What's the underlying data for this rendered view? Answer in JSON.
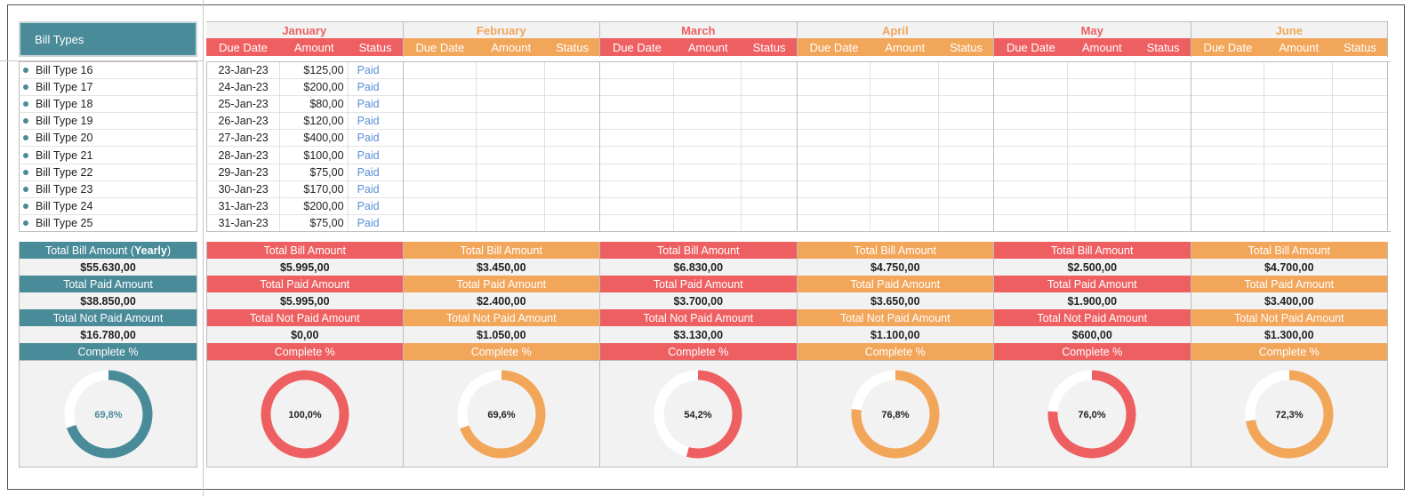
{
  "left": {
    "header": "Bill Types",
    "bill_types": [
      "Bill Type 16",
      "Bill Type 17",
      "Bill Type 18",
      "Bill Type 19",
      "Bill Type 20",
      "Bill Type 21",
      "Bill Type 22",
      "Bill Type 23",
      "Bill Type 24",
      "Bill Type 25"
    ],
    "summary": {
      "total_bill_label_main": "Total Bill Amount (",
      "total_bill_label_bold": "Yearly",
      "total_bill_label_end": ")",
      "total_bill_value": "$55.630,00",
      "total_paid_label": "Total Paid Amount",
      "total_paid_value": "$38.850,00",
      "total_not_paid_label": "Total Not Paid Amount",
      "total_not_paid_value": "$16.780,00",
      "complete_label": "Complete %",
      "complete_pct": 69.8,
      "complete_text": "69,8%",
      "color": "#4a8b99"
    }
  },
  "column_headers": {
    "due": "Due Date",
    "amount": "Amount",
    "status": "Status"
  },
  "months": [
    {
      "name": "January",
      "theme": "red",
      "color": "#ee5f61",
      "rows": [
        {
          "due": "23-Jan-23",
          "amount": "$125,00",
          "status": "Paid"
        },
        {
          "due": "24-Jan-23",
          "amount": "$200,00",
          "status": "Paid"
        },
        {
          "due": "25-Jan-23",
          "amount": "$80,00",
          "status": "Paid"
        },
        {
          "due": "26-Jan-23",
          "amount": "$120,00",
          "status": "Paid"
        },
        {
          "due": "27-Jan-23",
          "amount": "$400,00",
          "status": "Paid"
        },
        {
          "due": "28-Jan-23",
          "amount": "$100,00",
          "status": "Paid"
        },
        {
          "due": "29-Jan-23",
          "amount": "$75,00",
          "status": "Paid"
        },
        {
          "due": "30-Jan-23",
          "amount": "$170,00",
          "status": "Paid"
        },
        {
          "due": "31-Jan-23",
          "amount": "$200,00",
          "status": "Paid"
        },
        {
          "due": "31-Jan-23",
          "amount": "$75,00",
          "status": "Paid"
        }
      ],
      "total_bill": "$5.995,00",
      "total_paid": "$5.995,00",
      "total_not_paid": "$0,00",
      "complete_pct": 100.0,
      "complete_text": "100,0%"
    },
    {
      "name": "February",
      "theme": "orange",
      "color": "#f2a65a",
      "rows": [],
      "total_bill": "$3.450,00",
      "total_paid": "$2.400,00",
      "total_not_paid": "$1.050,00",
      "complete_pct": 69.6,
      "complete_text": "69,6%"
    },
    {
      "name": "March",
      "theme": "red",
      "color": "#ee5f61",
      "rows": [],
      "total_bill": "$6.830,00",
      "total_paid": "$3.700,00",
      "total_not_paid": "$3.130,00",
      "complete_pct": 54.2,
      "complete_text": "54,2%"
    },
    {
      "name": "April",
      "theme": "orange",
      "color": "#f2a65a",
      "rows": [],
      "total_bill": "$4.750,00",
      "total_paid": "$3.650,00",
      "total_not_paid": "$1.100,00",
      "complete_pct": 76.8,
      "complete_text": "76,8%"
    },
    {
      "name": "May",
      "theme": "red",
      "color": "#ee5f61",
      "rows": [],
      "total_bill": "$2.500,00",
      "total_paid": "$1.900,00",
      "total_not_paid": "$600,00",
      "complete_pct": 76.0,
      "complete_text": "76,0%"
    },
    {
      "name": "June",
      "theme": "orange",
      "color": "#f2a65a",
      "rows": [],
      "total_bill": "$4.700,00",
      "total_paid": "$3.400,00",
      "total_not_paid": "$1.300,00",
      "complete_pct": 72.3,
      "complete_text": "72,3%"
    }
  ],
  "summary_labels": {
    "total_bill": "Total Bill Amount",
    "total_paid": "Total Paid Amount",
    "total_not_paid": "Total Not Paid Amount",
    "complete": "Complete %"
  }
}
